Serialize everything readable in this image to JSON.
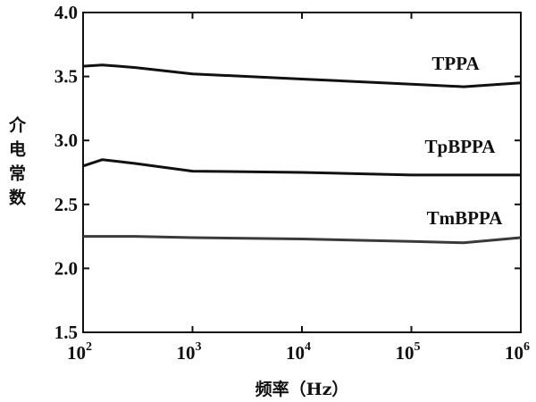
{
  "chart_data": {
    "type": "line",
    "x_label": "频率（Hz）",
    "y_label": "介电常数",
    "x": [
      100,
      150,
      300,
      1000,
      10000,
      100000,
      300000,
      1000000
    ],
    "series": [
      {
        "name": "TPPA",
        "color": "#111111",
        "values": [
          3.58,
          3.59,
          3.57,
          3.52,
          3.48,
          3.44,
          3.42,
          3.45
        ]
      },
      {
        "name": "TpBPPA",
        "color": "#111111",
        "values": [
          2.8,
          2.85,
          2.82,
          2.76,
          2.75,
          2.73,
          2.73,
          2.73
        ]
      },
      {
        "name": "TmBPPA",
        "color": "#3a3a3a",
        "values": [
          2.25,
          2.25,
          2.25,
          2.24,
          2.23,
          2.21,
          2.2,
          2.24
        ]
      }
    ],
    "xlog": true,
    "xlim": [
      100,
      1000000
    ],
    "xticks": [
      {
        "value": 100,
        "label": "10",
        "power": "2"
      },
      {
        "value": 1000,
        "label": "10",
        "power": "3"
      },
      {
        "value": 10000,
        "label": "10",
        "power": "4"
      },
      {
        "value": 100000,
        "label": "10",
        "power": "5"
      },
      {
        "value": 1000000,
        "label": "10",
        "power": "6"
      }
    ],
    "ylim": [
      1.5,
      4.0
    ],
    "yticks": [
      1.5,
      {
        "value": 2,
        "label": "2.0"
      },
      2.5,
      {
        "value": 3,
        "label": "3.0"
      },
      3.5,
      {
        "value": 4,
        "label": "4.0"
      }
    ],
    "grid": false
  }
}
